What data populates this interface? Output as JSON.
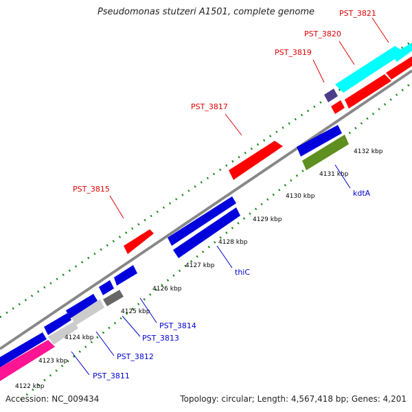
{
  "title": "Pseudomonas stutzeri A1501, complete genome",
  "footer": {
    "accession": "Accession: NC_009434",
    "summary": "Topology: circular; Length: 4,567,418 bp; Genes: 4,201"
  },
  "colors": {
    "backbone": "#888888",
    "tick_green": "#1a8a1a",
    "label_red": "#dd0000",
    "label_blue": "#0000cc"
  },
  "ticks": [
    "4122 kbp",
    "4123 kbp",
    "4124 kbp",
    "4125 kbp",
    "4126 kbp",
    "4127 kbp",
    "4128 kbp",
    "4129 kbp",
    "4130 kbp",
    "4131 kbp",
    "4132 kbp"
  ],
  "genes_top": [
    "PST_3815",
    "PST_3817",
    "PST_3819",
    "PST_3820",
    "PST_3821"
  ],
  "genes_bottom": [
    "PST_3811",
    "PST_3812",
    "PST_3813",
    "PST_3814",
    "thiC",
    "kdtA"
  ]
}
